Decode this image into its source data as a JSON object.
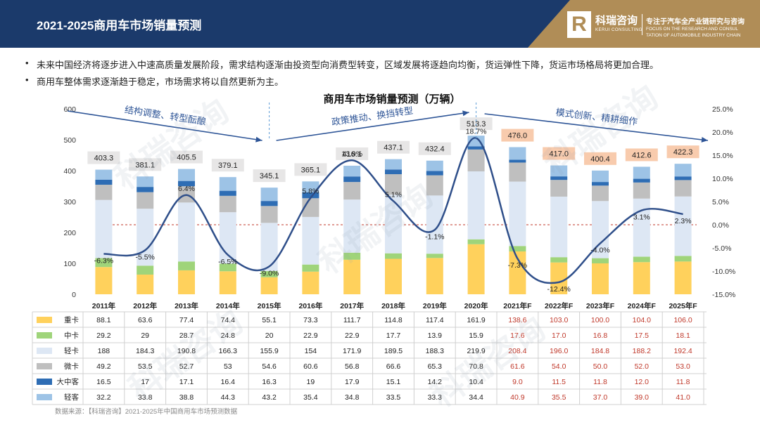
{
  "header": {
    "title": "2021-2025商用车市场销量预测",
    "brand_mark": "R",
    "brand_cn": "科瑞咨询",
    "brand_en": "KERUI CONSULTING",
    "slogan_cn": "专注于汽车全产业链研究与咨询",
    "slogan_en_1": "FOCUS ON THE RESEARCH AND CONSUL",
    "slogan_en_2": "TATION OF AUTOMOBILE INDUSTRY CHAIN"
  },
  "bullets": [
    "未来中国经济将逐步进入中速高质量发展阶段，需求结构逐渐由投资型向消费型转变，区域发展将逐趋向均衡，货运弹性下降，货运市场格局将更加合理。",
    "商用车整体需求逐渐趋于稳定，市场需求将以自然更新为主。"
  ],
  "bullet_symbol": "•",
  "watermark_text": "科瑞咨询",
  "source": "数据来源：【科瑞咨询】2021-2025年中国商用车市场预测数据",
  "colors": {
    "heavy": "#ffd15c",
    "medium": "#9fd47a",
    "light": "#dde7f4",
    "mini": "#bfbfbf",
    "bus": "#2e6db4",
    "lightbus": "#9dc3e6",
    "line": "#2f4f8a",
    "forecast_text": "#c0392b",
    "forecast_label_bg": "#f8cbad",
    "actual_label_bg": "#e7e6e6",
    "zero_line": "#c0392b"
  },
  "chart_data": {
    "type": "bar",
    "stacked": true,
    "title": "商用车市场销量预测（万辆）",
    "categories": [
      "2011年",
      "2012年",
      "2013年",
      "2014年",
      "2015年",
      "2016年",
      "2017年",
      "2018年",
      "2019年",
      "2020年",
      "2021年F",
      "2022年F",
      "2023年F",
      "2024年F",
      "2025年F"
    ],
    "forecast_start_index": 10,
    "ylim": [
      0,
      600
    ],
    "yticks": [
      0,
      100,
      200,
      300,
      400,
      500,
      600
    ],
    "y2lim": [
      -15,
      25
    ],
    "y2ticks": [
      "25.0%",
      "20.0%",
      "15.0%",
      "10.0%",
      "5.0%",
      "0.0%",
      "-5.0%",
      "-10.0%",
      "-15.0%"
    ],
    "y2tick_values": [
      25,
      20,
      15,
      10,
      5,
      0,
      -5,
      -10,
      -15
    ],
    "series": [
      {
        "name": "重卡",
        "key": "heavy",
        "values": [
          88.1,
          63.6,
          77.4,
          74.4,
          55.1,
          73.3,
          111.7,
          114.8,
          117.4,
          161.9,
          138.6,
          103.0,
          100.0,
          104.0,
          106.0
        ],
        "labels": [
          "88.1",
          "63.6",
          "77.4",
          "74.4",
          "55.1",
          "73.3",
          "111.7",
          "114.8",
          "117.4",
          "161.9",
          "138.6",
          "103.0",
          "100.0",
          "104.0",
          "106.0"
        ]
      },
      {
        "name": "中卡",
        "key": "medium",
        "values": [
          29.2,
          29,
          28.7,
          24.8,
          20,
          22.9,
          22.9,
          17.7,
          13.9,
          15.9,
          17.6,
          17.0,
          16.8,
          17.5,
          18.1
        ],
        "labels": [
          "29.2",
          "29",
          "28.7",
          "24.8",
          "20",
          "22.9",
          "22.9",
          "17.7",
          "13.9",
          "15.9",
          "17.6",
          "17.0",
          "16.8",
          "17.5",
          "18.1"
        ]
      },
      {
        "name": "轻卡",
        "key": "light",
        "values": [
          188,
          184.3,
          190.8,
          166.3,
          155.9,
          154,
          171.9,
          189.5,
          188.3,
          219.9,
          208.4,
          196.0,
          184.8,
          188.2,
          192.4
        ],
        "labels": [
          "188",
          "184.3",
          "190.8",
          "166.3",
          "155.9",
          "154",
          "171.9",
          "189.5",
          "188.3",
          "219.9",
          "208.4",
          "196.0",
          "184.8",
          "188.2",
          "192.4"
        ]
      },
      {
        "name": "微卡",
        "key": "mini",
        "values": [
          49.2,
          53.5,
          52.7,
          53,
          54.6,
          60.6,
          56.8,
          66.6,
          65.3,
          70.8,
          61.6,
          54.0,
          50.0,
          52.0,
          53.0
        ],
        "labels": [
          "49.2",
          "53.5",
          "52.7",
          "53",
          "54.6",
          "60.6",
          "56.8",
          "66.6",
          "65.3",
          "70.8",
          "61.6",
          "54.0",
          "50.0",
          "52.0",
          "53.0"
        ]
      },
      {
        "name": "大中客",
        "key": "bus",
        "values": [
          16.5,
          17,
          17.1,
          16.4,
          16.3,
          19,
          17.9,
          15.1,
          14.2,
          10.4,
          9.0,
          11.5,
          11.8,
          12.0,
          11.8
        ],
        "labels": [
          "16.5",
          "17",
          "17.1",
          "16.4",
          "16.3",
          "19",
          "17.9",
          "15.1",
          "14.2",
          "10.4",
          "9.0",
          "11.5",
          "11.8",
          "12.0",
          "11.8"
        ]
      },
      {
        "name": "轻客",
        "key": "lightbus",
        "values": [
          32.2,
          33.8,
          38.8,
          44.3,
          43.2,
          35.4,
          34.8,
          33.5,
          33.3,
          34.4,
          40.9,
          35.5,
          37.0,
          39.0,
          41.0
        ],
        "labels": [
          "32.2",
          "33.8",
          "38.8",
          "44.3",
          "43.2",
          "35.4",
          "34.8",
          "33.5",
          "33.3",
          "34.4",
          "40.9",
          "35.5",
          "37.0",
          "39.0",
          "41.0"
        ]
      }
    ],
    "totals": [
      403.3,
      381.1,
      405.5,
      379.1,
      345.1,
      365.1,
      416.1,
      437.1,
      432.4,
      513.3,
      476.0,
      417.0,
      400.4,
      412.6,
      422.3
    ],
    "total_labels": [
      "403.3",
      "381.1",
      "405.5",
      "379.1",
      "345.1",
      "365.1",
      "416.1",
      "437.1",
      "432.4",
      "513.3",
      "476.0",
      "417.0",
      "400.4",
      "412.6",
      "422.3"
    ],
    "growth": [
      -6.3,
      -5.5,
      6.4,
      -6.5,
      -9.0,
      5.8,
      13.9,
      5.1,
      -1.1,
      18.7,
      -7.3,
      -12.4,
      -4.0,
      3.1,
      2.3
    ],
    "growth_labels": [
      "-6.3%",
      "-5.5%",
      "6.4%",
      "-6.5%",
      "-9.0%",
      "5.8%",
      "13.9%",
      "5.1%",
      "-1.1%",
      "18.7%",
      "-7.3%",
      "-12.4%",
      "-4.0%",
      "3.1%",
      "2.3%"
    ],
    "phases": [
      {
        "label": "结构调整、转型酝酿",
        "from": 0,
        "to": 4
      },
      {
        "label": "政策推动、换挡转型",
        "from": 4,
        "to": 9
      },
      {
        "label": "模式创新、精耕细作",
        "from": 10,
        "to": 14
      }
    ]
  }
}
